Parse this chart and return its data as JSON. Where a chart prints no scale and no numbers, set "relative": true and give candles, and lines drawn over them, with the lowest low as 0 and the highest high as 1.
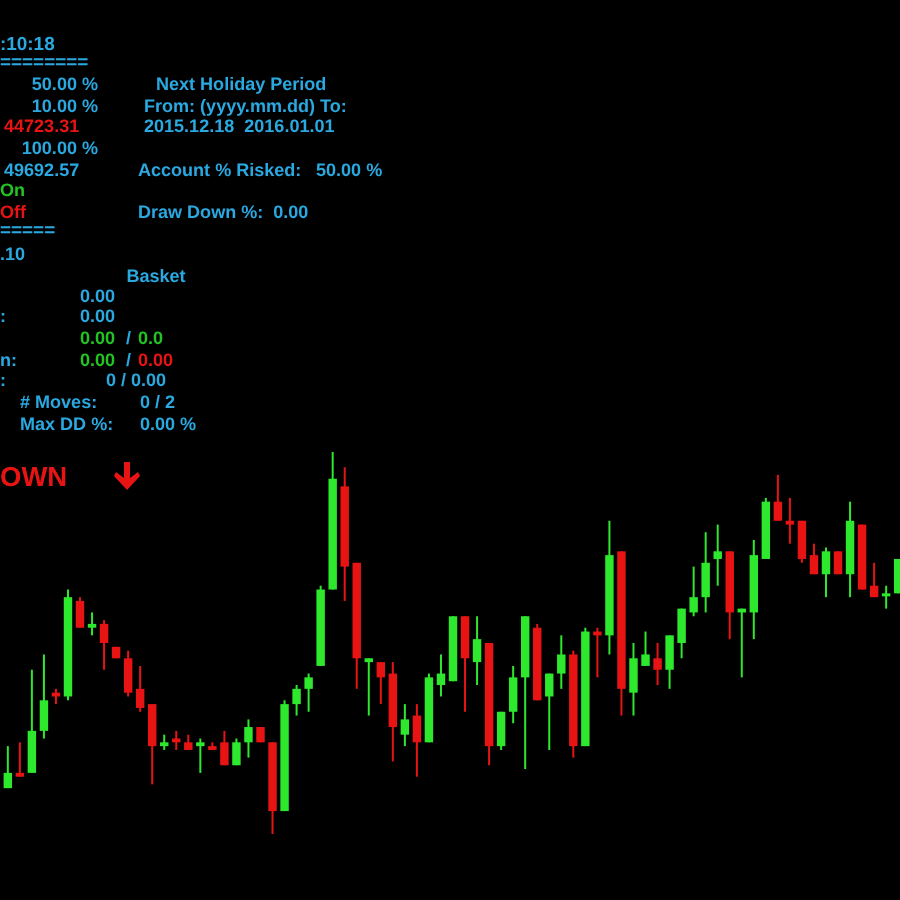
{
  "chart_data": {
    "type": "candlestick",
    "relative": true,
    "colors": [
      "#2ee82e",
      "#e81414",
      "#2ee82e",
      "#2ee82e",
      "#e81414",
      "#2ee82e",
      "#e81414",
      "#2ee82e",
      "#e81414",
      "#e81414",
      "#e81414",
      "#e81414",
      "#e81414",
      "#2ee82e",
      "#e81414",
      "#e81414",
      "#2ee82e",
      "#e81414",
      "#e81414",
      "#2ee82e",
      "#2ee82e",
      "#e81414",
      "#e81414",
      "#2ee82e",
      "#2ee82e",
      "#2ee82e",
      "#2ee82e",
      "#2ee82e",
      "#e81414",
      "#e81414",
      "#2ee82e",
      "#e81414",
      "#e81414",
      "#2ee82e",
      "#e81414",
      "#2ee82e",
      "#2ee82e",
      "#2ee82e",
      "#e81414",
      "#2ee82e",
      "#e81414",
      "#2ee82e",
      "#2ee82e",
      "#2ee82e",
      "#e81414",
      "#2ee82e",
      "#2ee82e",
      "#e81414",
      "#2ee82e",
      "#e81414",
      "#2ee82e",
      "#e81414",
      "#2ee82e",
      "#2ee82e",
      "#e81414",
      "#2ee82e",
      "#2ee82e",
      "#2ee82e",
      "#2ee82e",
      "#2ee82e",
      "#e81414",
      "#2ee82e",
      "#2ee82e",
      "#2ee82e",
      "#e81414",
      "#e81414",
      "#e81414",
      "#e81414",
      "#2ee82e",
      "#e81414",
      "#2ee82e",
      "#e81414",
      "#e81414",
      "#2ee82e",
      "#2ee82e"
    ],
    "categories": [
      null,
      null,
      null,
      null,
      null,
      null,
      null,
      null,
      null,
      null,
      null,
      null,
      null,
      null,
      null,
      null,
      null,
      null,
      null,
      null,
      null,
      null,
      null,
      null,
      null,
      null,
      null,
      null,
      null,
      null,
      null,
      null,
      null,
      null,
      null,
      null,
      null,
      null,
      null,
      null,
      null,
      null,
      null,
      null,
      null,
      null,
      null,
      null,
      null,
      null,
      null,
      null,
      null,
      null,
      null,
      null,
      null,
      null,
      null,
      null,
      null,
      null,
      null,
      null,
      null,
      null,
      null,
      null,
      null,
      null,
      null,
      null,
      null,
      null,
      null
    ],
    "ohlc": [
      [
        0.12,
        0.23,
        0.12,
        0.16
      ],
      [
        0.16,
        0.24,
        0.15,
        0.15
      ],
      [
        0.16,
        0.43,
        0.16,
        0.27
      ],
      [
        0.27,
        0.47,
        0.25,
        0.35
      ],
      [
        0.37,
        0.38,
        0.34,
        0.36
      ],
      [
        0.36,
        0.64,
        0.35,
        0.62
      ],
      [
        0.61,
        0.62,
        0.54,
        0.54
      ],
      [
        0.54,
        0.58,
        0.52,
        0.55
      ],
      [
        0.55,
        0.56,
        0.43,
        0.5
      ],
      [
        0.49,
        0.49,
        0.46,
        0.46
      ],
      [
        0.46,
        0.48,
        0.36,
        0.37
      ],
      [
        0.38,
        0.44,
        0.32,
        0.33
      ],
      [
        0.34,
        0.34,
        0.13,
        0.23
      ],
      [
        0.23,
        0.26,
        0.22,
        0.24
      ],
      [
        0.25,
        0.27,
        0.22,
        0.24
      ],
      [
        0.24,
        0.26,
        0.22,
        0.22
      ],
      [
        0.23,
        0.25,
        0.16,
        0.24
      ],
      [
        0.23,
        0.24,
        0.22,
        0.22
      ],
      [
        0.24,
        0.27,
        0.18,
        0.18
      ],
      [
        0.18,
        0.25,
        0.18,
        0.24
      ],
      [
        0.24,
        0.3,
        0.2,
        0.28
      ],
      [
        0.28,
        0.28,
        0.24,
        0.24
      ],
      [
        0.24,
        0.24,
        0,
        0.06
      ],
      [
        0.06,
        0.35,
        0.06,
        0.34
      ],
      [
        0.34,
        0.39,
        0.31,
        0.38
      ],
      [
        0.38,
        0.42,
        0.32,
        0.41
      ],
      [
        0.44,
        0.65,
        0.44,
        0.64
      ],
      [
        0.64,
        1,
        0.64,
        0.93
      ],
      [
        0.91,
        0.96,
        0.61,
        0.7
      ],
      [
        0.71,
        0.71,
        0.38,
        0.46
      ],
      [
        0.45,
        0.46,
        0.31,
        0.46
      ],
      [
        0.45,
        0.45,
        0.34,
        0.41
      ],
      [
        0.42,
        0.45,
        0.19,
        0.28
      ],
      [
        0.26,
        0.34,
        0.23,
        0.3
      ],
      [
        0.31,
        0.34,
        0.15,
        0.24
      ],
      [
        0.24,
        0.42,
        0.24,
        0.41
      ],
      [
        0.39,
        0.47,
        0.36,
        0.42
      ],
      [
        0.4,
        0.57,
        0.4,
        0.57
      ],
      [
        0.57,
        0.57,
        0.32,
        0.46
      ],
      [
        0.45,
        0.57,
        0.39,
        0.51
      ],
      [
        0.5,
        0.5,
        0.18,
        0.23
      ],
      [
        0.23,
        0.32,
        0.22,
        0.32
      ],
      [
        0.32,
        0.44,
        0.29,
        0.41
      ],
      [
        0.41,
        0.57,
        0.17,
        0.57
      ],
      [
        0.54,
        0.55,
        0.35,
        0.35
      ],
      [
        0.36,
        0.42,
        0.22,
        0.42
      ],
      [
        0.42,
        0.52,
        0.38,
        0.47
      ],
      [
        0.47,
        0.48,
        0.2,
        0.23
      ],
      [
        0.23,
        0.54,
        0.23,
        0.53
      ],
      [
        0.53,
        0.54,
        0.41,
        0.52
      ],
      [
        0.52,
        0.82,
        0.47,
        0.73
      ],
      [
        0.74,
        0.74,
        0.31,
        0.38
      ],
      [
        0.37,
        0.5,
        0.31,
        0.46
      ],
      [
        0.44,
        0.53,
        0.44,
        0.47
      ],
      [
        0.46,
        0.5,
        0.39,
        0.43
      ],
      [
        0.43,
        0.52,
        0.38,
        0.52
      ],
      [
        0.5,
        0.59,
        0.46,
        0.59
      ],
      [
        0.58,
        0.7,
        0.57,
        0.62
      ],
      [
        0.62,
        0.79,
        0.58,
        0.71
      ],
      [
        0.72,
        0.81,
        0.65,
        0.74
      ],
      [
        0.74,
        0.74,
        0.51,
        0.58
      ],
      [
        0.58,
        0.59,
        0.41,
        0.59
      ],
      [
        0.58,
        0.77,
        0.51,
        0.73
      ],
      [
        0.72,
        0.88,
        0.72,
        0.87
      ],
      [
        0.87,
        0.94,
        0.82,
        0.82
      ],
      [
        0.82,
        0.88,
        0.76,
        0.81
      ],
      [
        0.82,
        0.82,
        0.71,
        0.72
      ],
      [
        0.73,
        0.76,
        0.68,
        0.68
      ],
      [
        0.68,
        0.75,
        0.62,
        0.74
      ],
      [
        0.74,
        0.74,
        0.68,
        0.68
      ],
      [
        0.68,
        0.87,
        0.62,
        0.82
      ],
      [
        0.81,
        0.81,
        0.64,
        0.64
      ],
      [
        0.65,
        0.71,
        0.62,
        0.62
      ],
      [
        0.63,
        0.65,
        0.59,
        0.63
      ],
      [
        0.63,
        0.72,
        0.63,
        0.72
      ]
    ],
    "annotations": [
      ":10:18",
      "========",
      "50.00 %",
      "10.00 %",
      "44723.31",
      "100.00 %",
      "49692.57",
      "On",
      "Off",
      "=====",
      ".10",
      "Basket",
      "0.00",
      ":",
      "0.00",
      "0.00",
      "/",
      "0.0",
      "n:",
      "0.00",
      "/",
      "0.00",
      ":",
      "0 / 0.00",
      "# Moves:",
      "0 / 2",
      "Max DD %:",
      "0.00 %",
      "OWN",
      "Next Holiday Period",
      "From: (yyyy.mm.dd) To:",
      "2015.12.18  2016.01.01",
      "Account % Risked:",
      "50.00 %",
      "Draw Down %:  0.00"
    ]
  }
}
